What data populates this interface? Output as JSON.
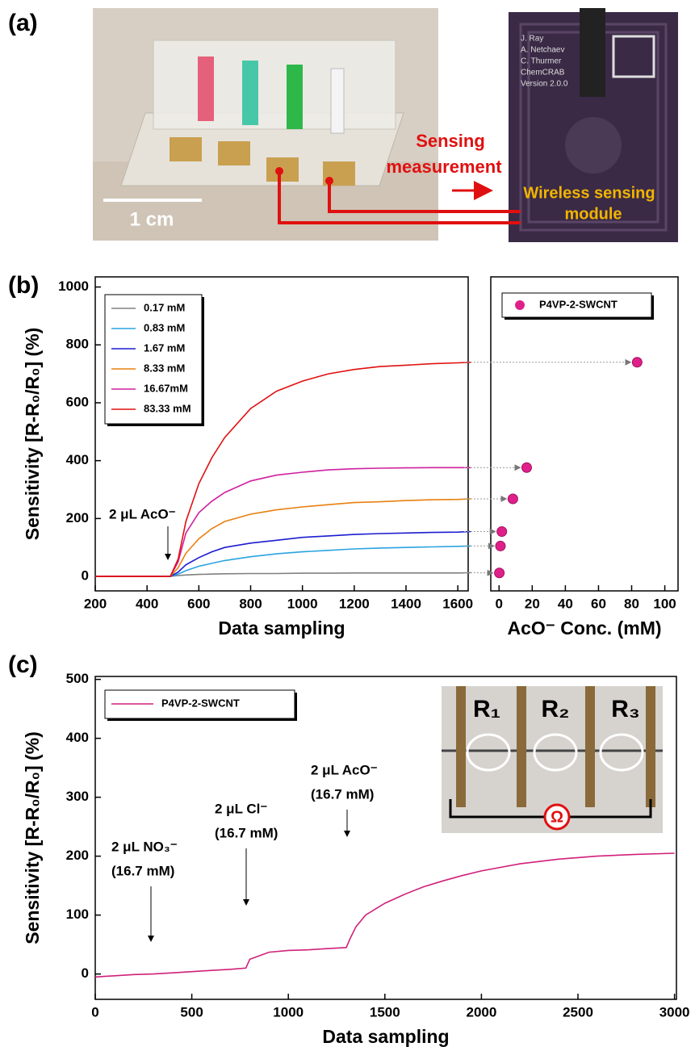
{
  "panel_labels": [
    "(a)",
    "(b)",
    "(c)"
  ],
  "photo": {
    "scale_bar": "1 cm",
    "arrow_label": [
      "Sensing",
      "measurement"
    ],
    "module_label": [
      "Wireless sensing",
      "module"
    ],
    "board_text": [
      "J. Ray",
      "A. Netchaev",
      "C. Thurmer",
      "ChemCRAB",
      "Version 2.0.0"
    ]
  },
  "chart_data": [
    {
      "type": "line",
      "xlabel": "Data sampling",
      "ylabel": "Sensitivity [R-R₀/R₀] (%)",
      "xlim": [
        200,
        1640
      ],
      "ylim": [
        -50,
        1035
      ],
      "xticks": [
        200,
        400,
        600,
        800,
        1000,
        1200,
        1400,
        1600
      ],
      "yticks": [
        0,
        200,
        400,
        600,
        800,
        1000
      ],
      "x": [
        200,
        300,
        400,
        490,
        520,
        550,
        600,
        650,
        700,
        800,
        900,
        1000,
        1100,
        1200,
        1300,
        1400,
        1500,
        1600,
        1650
      ],
      "series": [
        {
          "name": "0.17 mM",
          "color": "#808080",
          "values": [
            0,
            0,
            0,
            0,
            3,
            5,
            7,
            8,
            9,
            10,
            10,
            11,
            11,
            12,
            12,
            12,
            12,
            12,
            13
          ]
        },
        {
          "name": "0.83 mM",
          "color": "#2aa3e0",
          "values": [
            0,
            0,
            0,
            0,
            8,
            20,
            35,
            45,
            55,
            68,
            78,
            85,
            90,
            95,
            98,
            100,
            102,
            104,
            105
          ]
        },
        {
          "name": "1.67 mM",
          "color": "#1c1cd0",
          "values": [
            0,
            0,
            0,
            0,
            15,
            40,
            65,
            85,
            100,
            115,
            125,
            135,
            140,
            145,
            148,
            150,
            152,
            153,
            155
          ]
        },
        {
          "name": "8.33 mM",
          "color": "#e8800f",
          "values": [
            0,
            0,
            0,
            0,
            30,
            80,
            130,
            165,
            190,
            215,
            230,
            240,
            248,
            255,
            258,
            262,
            265,
            266,
            268
          ]
        },
        {
          "name": "16.67mM",
          "color": "#d020a0",
          "values": [
            0,
            0,
            0,
            0,
            50,
            150,
            220,
            260,
            290,
            330,
            350,
            360,
            368,
            372,
            374,
            375,
            376,
            376,
            376
          ]
        },
        {
          "name": "83.33 mM",
          "color": "#e01010",
          "values": [
            0,
            0,
            0,
            0,
            60,
            190,
            320,
            410,
            480,
            580,
            640,
            675,
            700,
            715,
            725,
            730,
            735,
            738,
            740
          ]
        }
      ],
      "annotations": [
        "2 μL AcO⁻"
      ]
    },
    {
      "type": "scatter",
      "xlabel": "AcO⁻ Conc. (mM)",
      "xlim": [
        -5,
        108
      ],
      "ylim": [
        -50,
        1035
      ],
      "xticks": [
        0,
        20,
        40,
        60,
        80,
        100
      ],
      "name": "P4VP-2-SWCNT",
      "color": "#e0208a",
      "x": [
        0.17,
        0.83,
        1.67,
        8.33,
        16.67,
        83.33
      ],
      "values": [
        12,
        105,
        155,
        268,
        376,
        740
      ]
    },
    {
      "type": "line",
      "xlabel": "Data sampling",
      "ylabel": "Sensitivity [R-R₀/R₀] (%)",
      "xlim": [
        0,
        3010
      ],
      "ylim": [
        -43,
        505
      ],
      "xticks": [
        0,
        500,
        1000,
        1500,
        2000,
        2500,
        3000
      ],
      "yticks": [
        0,
        100,
        200,
        300,
        400,
        500
      ],
      "x": [
        0,
        100,
        200,
        300,
        400,
        500,
        600,
        700,
        780,
        800,
        900,
        1000,
        1100,
        1200,
        1300,
        1320,
        1350,
        1400,
        1500,
        1600,
        1700,
        1800,
        1900,
        2000,
        2200,
        2400,
        2600,
        2800,
        3000
      ],
      "series": [
        {
          "name": "P4VP-2-SWCNT",
          "color": "#d0207a",
          "values": [
            -5,
            -3,
            -1,
            0,
            2,
            4,
            6,
            8,
            10,
            25,
            37,
            40,
            41,
            43,
            45,
            60,
            80,
            100,
            120,
            135,
            148,
            158,
            167,
            175,
            187,
            195,
            200,
            203,
            205
          ]
        }
      ],
      "annotations": [
        [
          "2 μL NO₃⁻",
          "(16.7 mM)"
        ],
        [
          "2 μL Cl⁻",
          "(16.7 mM)"
        ],
        [
          "2 μL AcO⁻",
          "(16.7 mM)"
        ]
      ],
      "inset": {
        "labels": [
          "R₁",
          "R₂",
          "R₃"
        ],
        "symbol": "Ω"
      }
    }
  ]
}
